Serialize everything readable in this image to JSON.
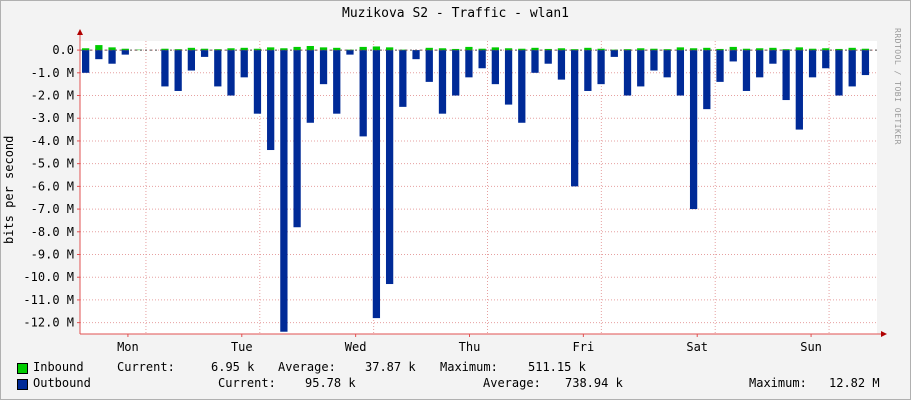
{
  "chart_data": {
    "type": "area",
    "title": "Muzikova S2 - Traffic - wlan1",
    "ylabel": "bits per second",
    "watermark": "RRDTOOL / TOBI OETIKER",
    "ylim": [
      -12.5,
      0.4
    ],
    "yticks": [
      {
        "value": 0,
        "label": "0.0"
      },
      {
        "value": -1,
        "label": "-1.0 M"
      },
      {
        "value": -2,
        "label": "-2.0 M"
      },
      {
        "value": -3,
        "label": "-3.0 M"
      },
      {
        "value": -4,
        "label": "-4.0 M"
      },
      {
        "value": -5,
        "label": "-5.0 M"
      },
      {
        "value": -6,
        "label": "-6.0 M"
      },
      {
        "value": -7,
        "label": "-7.0 M"
      },
      {
        "value": -8,
        "label": "-8.0 M"
      },
      {
        "value": -9,
        "label": "-9.0 M"
      },
      {
        "value": -10,
        "label": "-10.0 M"
      },
      {
        "value": -11,
        "label": "-11.0 M"
      },
      {
        "value": -12,
        "label": "-12.0 M"
      }
    ],
    "days": [
      "Mon",
      "Tue",
      "Wed",
      "Thu",
      "Fri",
      "Sat",
      "Sun"
    ],
    "grid": true,
    "series": [
      {
        "name": "Inbound",
        "color": "#00cc00",
        "unit": "Mbps",
        "values": [
          0.08,
          0.22,
          0.12,
          0.06,
          0.02,
          0.0,
          0.06,
          0.04,
          0.1,
          0.06,
          0.04,
          0.08,
          0.1,
          0.06,
          0.12,
          0.08,
          0.14,
          0.18,
          0.12,
          0.1,
          0.02,
          0.14,
          0.16,
          0.12,
          0.02,
          0.0,
          0.1,
          0.08,
          0.05,
          0.14,
          0.06,
          0.12,
          0.08,
          0.06,
          0.1,
          0.05,
          0.08,
          0.04,
          0.1,
          0.06,
          0.02,
          0.04,
          0.08,
          0.06,
          0.04,
          0.12,
          0.08,
          0.1,
          0.05,
          0.14,
          0.06,
          0.08,
          0.1,
          0.04,
          0.12,
          0.06,
          0.08,
          0.05,
          0.1,
          0.06
        ]
      },
      {
        "name": "Outbound",
        "color": "#002a97",
        "unit": "Mbps",
        "values": [
          -1.0,
          -0.4,
          -0.6,
          -0.2,
          0.0,
          0.0,
          -1.6,
          -1.8,
          -0.9,
          -0.3,
          -1.6,
          -2.0,
          -1.2,
          -2.8,
          -4.4,
          -12.4,
          -7.8,
          -3.2,
          -1.5,
          -2.8,
          -0.2,
          -3.8,
          -11.8,
          -10.3,
          -2.5,
          -0.4,
          -1.4,
          -2.8,
          -2.0,
          -1.2,
          -0.8,
          -1.5,
          -2.4,
          -3.2,
          -1.0,
          -0.6,
          -1.3,
          -6.0,
          -1.8,
          -1.5,
          -0.3,
          -2.0,
          -1.6,
          -0.9,
          -1.2,
          -2.0,
          -7.0,
          -2.6,
          -1.4,
          -0.5,
          -1.8,
          -1.2,
          -0.6,
          -2.2,
          -3.5,
          -1.2,
          -0.8,
          -2.0,
          -1.6,
          -1.1
        ]
      }
    ]
  },
  "legend": {
    "inbound": {
      "name": "Inbound",
      "current_label": "Current:",
      "current": "6.95 k",
      "average_label": "Average:",
      "average": "37.87 k",
      "maximum_label": "Maximum:",
      "maximum": "511.15 k"
    },
    "outbound": {
      "name": "Outbound",
      "current_label": "Current:",
      "current": "95.78 k",
      "average_label": "Average:",
      "average": "738.94 k",
      "maximum_label": "Maximum:",
      "maximum": "12.82 M"
    }
  }
}
